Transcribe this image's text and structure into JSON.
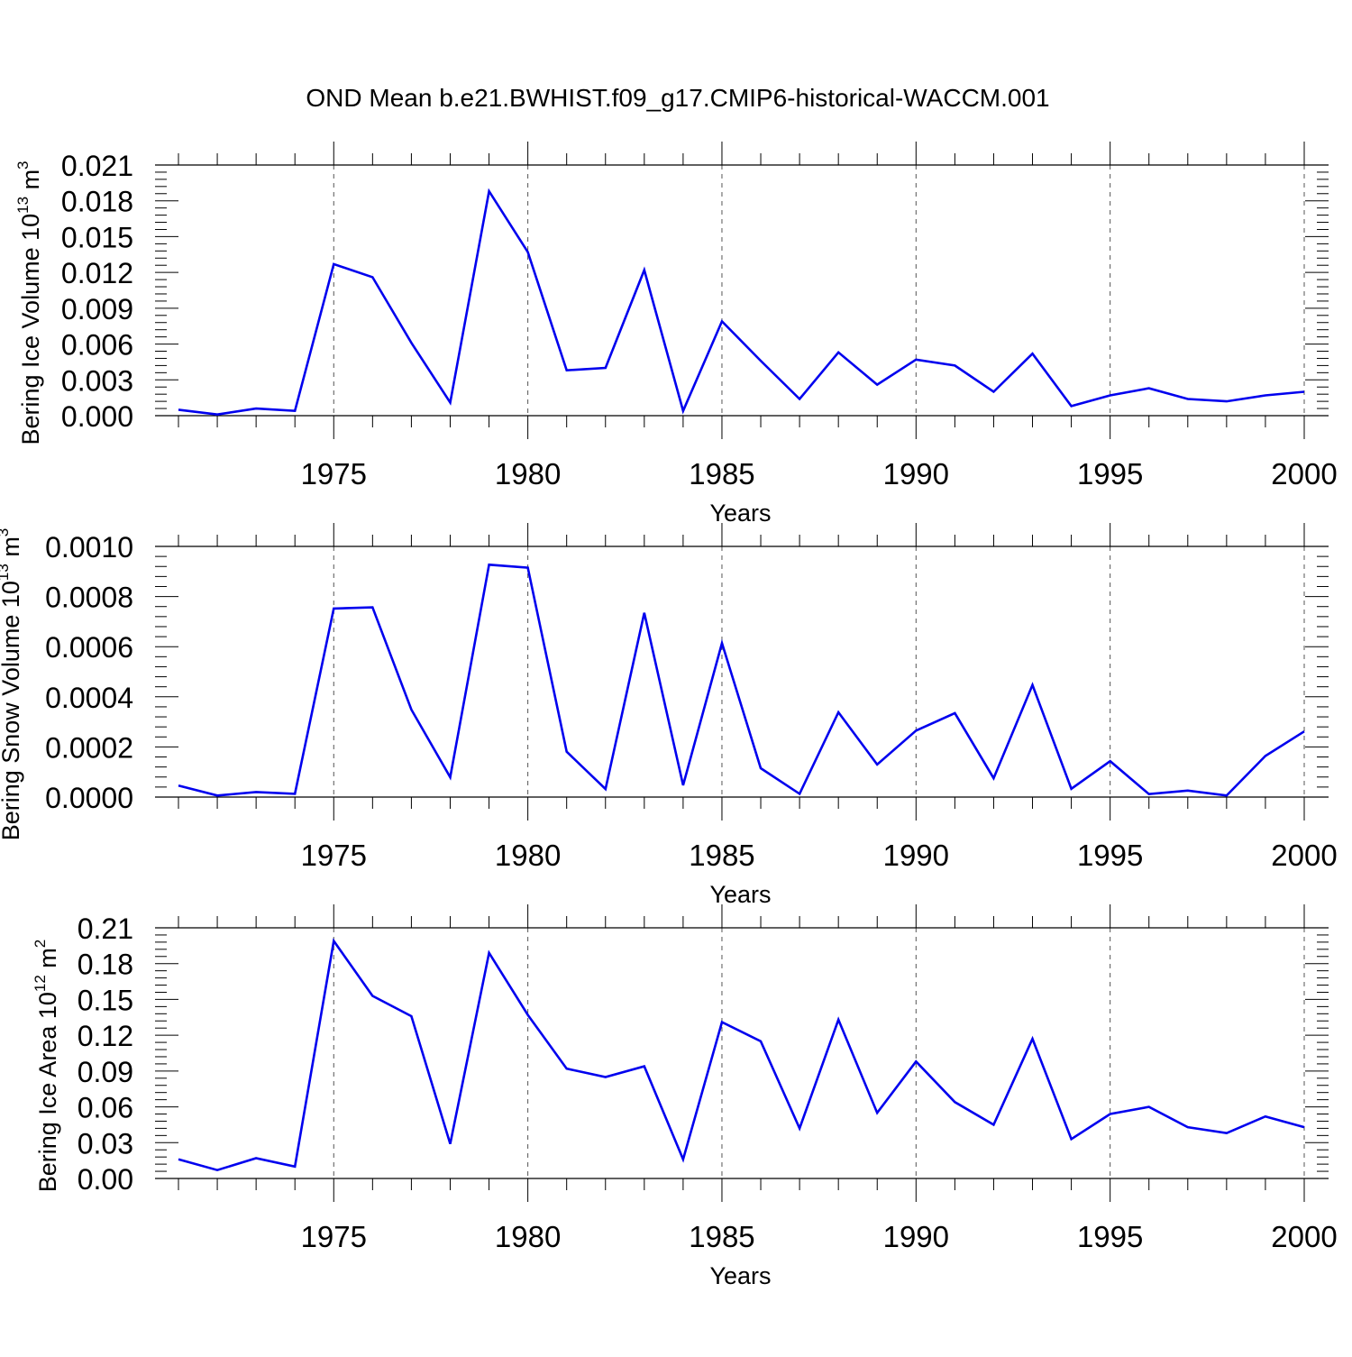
{
  "title": "OND Mean b.e21.BWHIST.f09_g17.CMIP6-historical-WACCM.001",
  "colors": {
    "line": "#0000ee",
    "axis": "#000000",
    "grid": "#555555",
    "background": "#ffffff"
  },
  "chart_data": [
    {
      "type": "line",
      "ylabel": "Bering Ice Volume 10",
      "ylabel_exp": "13",
      "ylabel_unit": " m",
      "ylabel_unit_exp": "3",
      "xlabel": "Years",
      "xlim": [
        1971,
        2000
      ],
      "ylim": [
        0.0,
        0.021
      ],
      "x_ticks": [
        1975,
        1980,
        1985,
        1990,
        1995,
        2000
      ],
      "y_ticks": [
        "0.000",
        "0.003",
        "0.006",
        "0.009",
        "0.012",
        "0.015",
        "0.018",
        "0.021"
      ],
      "grid": "vertical dashed at major x ticks",
      "series": [
        {
          "x": [
            1971,
            1972,
            1973,
            1974,
            1975,
            1976,
            1977,
            1978,
            1979,
            1980,
            1981,
            1982,
            1983,
            1984,
            1985,
            1986,
            1987,
            1988,
            1989,
            1990,
            1991,
            1992,
            1993,
            1994,
            1995,
            1996,
            1997,
            1998,
            1999,
            2000
          ],
          "values": [
            0.0005,
            0.0001,
            0.0006,
            0.0004,
            0.0127,
            0.0116,
            0.0061,
            0.0011,
            0.0188,
            0.0137,
            0.0038,
            0.004,
            0.0122,
            0.0004,
            0.0079,
            0.0046,
            0.0014,
            0.0053,
            0.0026,
            0.0047,
            0.0042,
            0.002,
            0.0052,
            0.0008,
            0.0017,
            0.0023,
            0.0014,
            0.0012,
            0.0017,
            0.002
          ]
        }
      ]
    },
    {
      "type": "line",
      "ylabel": "Bering Snow Volume 10",
      "ylabel_exp": "13",
      "ylabel_unit": " m",
      "ylabel_unit_exp": "3",
      "xlabel": "Years",
      "xlim": [
        1971,
        2000
      ],
      "ylim": [
        0.0,
        0.001
      ],
      "x_ticks": [
        1975,
        1980,
        1985,
        1990,
        1995,
        2000
      ],
      "y_ticks": [
        "0.0000",
        "0.0002",
        "0.0004",
        "0.0006",
        "0.0008",
        "0.0010"
      ],
      "grid": "vertical dashed at major x ticks",
      "series": [
        {
          "x": [
            1971,
            1972,
            1973,
            1974,
            1975,
            1976,
            1977,
            1978,
            1979,
            1980,
            1981,
            1982,
            1983,
            1984,
            1985,
            1986,
            1987,
            1988,
            1989,
            1990,
            1991,
            1992,
            1993,
            1994,
            1995,
            1996,
            1997,
            1998,
            1999,
            2000
          ],
          "values": [
            4.6e-05,
            6e-06,
            2e-05,
            1.3e-05,
            0.000752,
            0.000757,
            0.000349,
            7.9e-05,
            0.000927,
            0.000915,
            0.000181,
            3.2e-05,
            0.000735,
            4.7e-05,
            0.000614,
            0.000115,
            1.3e-05,
            0.000338,
            0.00013,
            0.000265,
            0.000335,
            7.5e-05,
            0.000447,
            3.3e-05,
            0.000143,
            1.2e-05,
            2.6e-05,
            6e-06,
            0.000164,
            0.000262
          ]
        }
      ]
    },
    {
      "type": "line",
      "ylabel": "Bering Ice Area 10",
      "ylabel_exp": "12",
      "ylabel_unit": " m",
      "ylabel_unit_exp": "2",
      "xlabel": "Years",
      "xlim": [
        1971,
        2000
      ],
      "ylim": [
        0.0,
        0.21
      ],
      "x_ticks": [
        1975,
        1980,
        1985,
        1990,
        1995,
        2000
      ],
      "y_ticks": [
        "0.00",
        "0.03",
        "0.06",
        "0.09",
        "0.12",
        "0.15",
        "0.18",
        "0.21"
      ],
      "grid": "vertical dashed at major x ticks",
      "series": [
        {
          "x": [
            1971,
            1972,
            1973,
            1974,
            1975,
            1976,
            1977,
            1978,
            1979,
            1980,
            1981,
            1982,
            1983,
            1984,
            1985,
            1986,
            1987,
            1988,
            1989,
            1990,
            1991,
            1992,
            1993,
            1994,
            1995,
            1996,
            1997,
            1998,
            1999,
            2000
          ],
          "values": [
            0.016,
            0.007,
            0.017,
            0.01,
            0.199,
            0.153,
            0.136,
            0.029,
            0.189,
            0.137,
            0.092,
            0.085,
            0.094,
            0.016,
            0.131,
            0.115,
            0.042,
            0.133,
            0.055,
            0.098,
            0.064,
            0.045,
            0.117,
            0.033,
            0.054,
            0.06,
            0.043,
            0.038,
            0.052,
            0.043
          ]
        }
      ]
    }
  ]
}
